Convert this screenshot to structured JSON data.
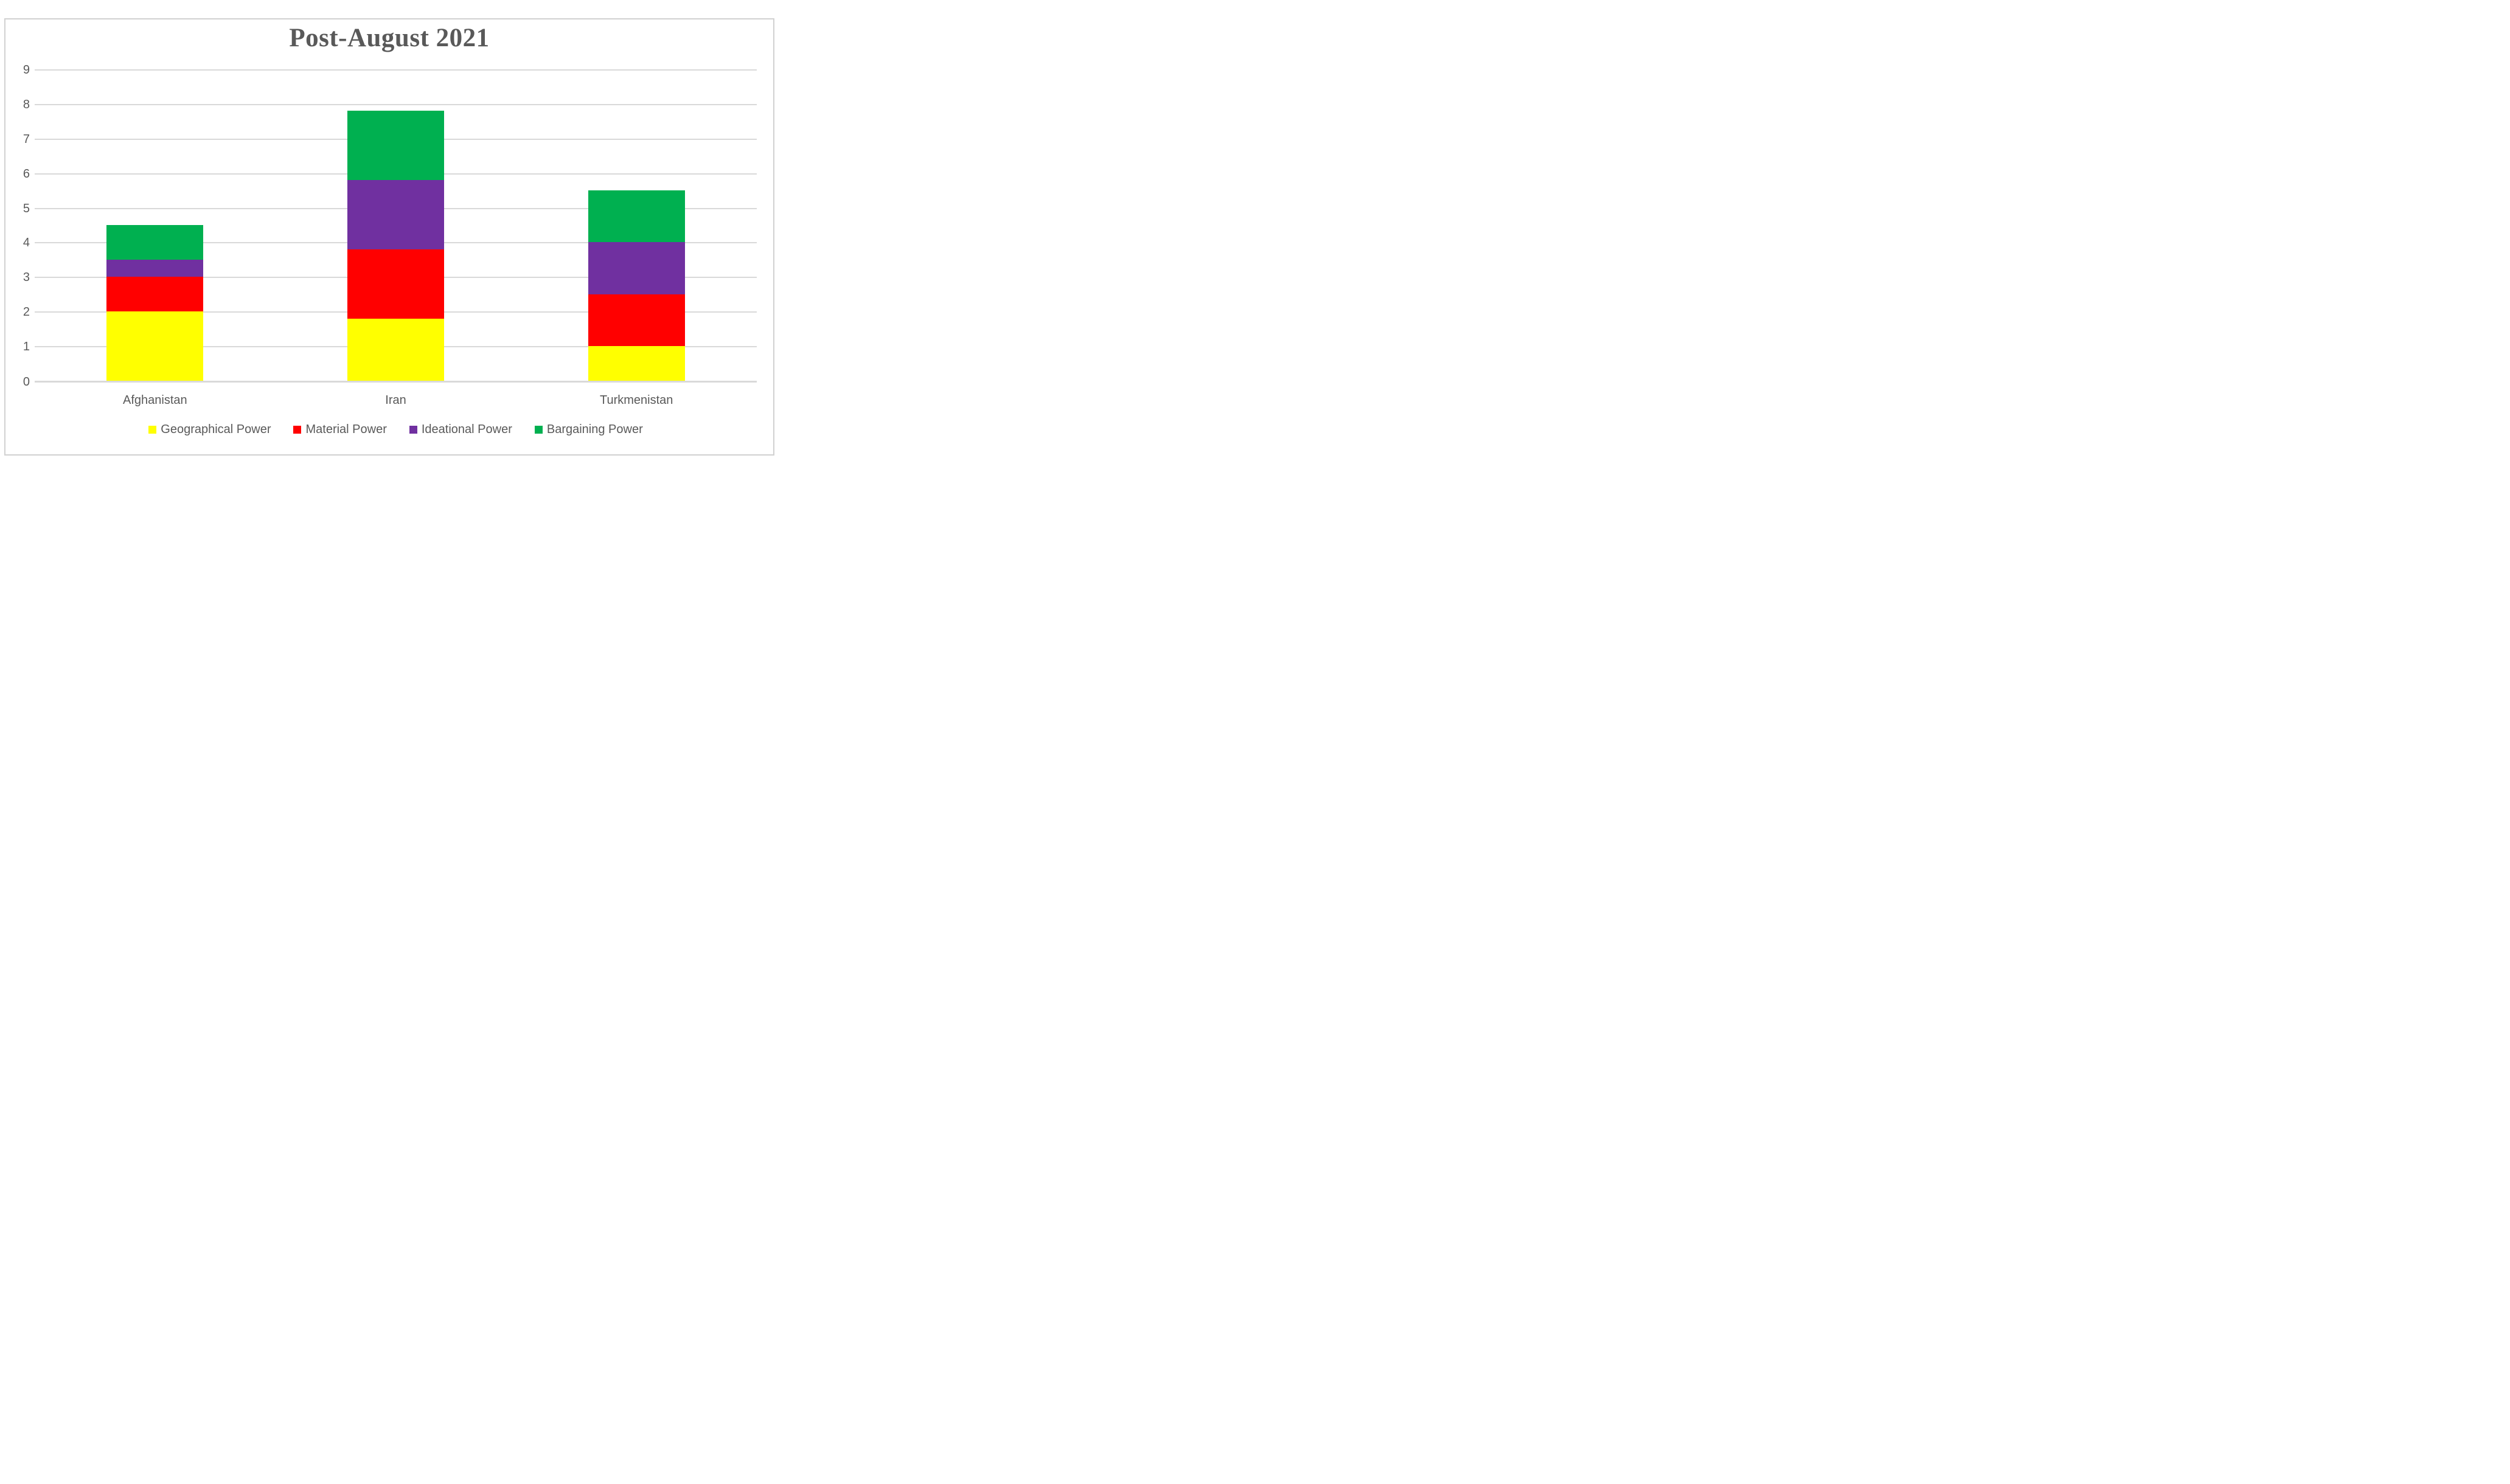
{
  "figure": {
    "background_color": "#ffffff",
    "frame_border_color": "#d1d1d1",
    "text_color": "#595959",
    "gridline_color": "#d9d9d9"
  },
  "chart_data": {
    "type": "bar",
    "stacked": true,
    "title": "Post-August 2021",
    "xlabel": "",
    "ylabel": "",
    "categories": [
      "Afghanistan",
      "Iran",
      "Turkmenistan"
    ],
    "series": [
      {
        "name": "Geographical Power",
        "color": "#ffff00",
        "values": [
          2.0,
          1.8,
          1.0
        ]
      },
      {
        "name": "Material Power",
        "color": "#ff0000",
        "values": [
          1.0,
          2.0,
          1.5
        ]
      },
      {
        "name": "Ideational Power",
        "color": "#7030a0",
        "values": [
          0.5,
          2.0,
          1.5
        ]
      },
      {
        "name": "Bargaining Power",
        "color": "#00b050",
        "values": [
          1.0,
          2.0,
          1.5
        ]
      }
    ],
    "totals": [
      4.5,
      7.8,
      5.5
    ],
    "ylim": [
      0,
      9
    ],
    "yticks": [
      0,
      1,
      2,
      3,
      4,
      5,
      6,
      7,
      8,
      9
    ],
    "grid": true,
    "legend_position": "bottom"
  }
}
